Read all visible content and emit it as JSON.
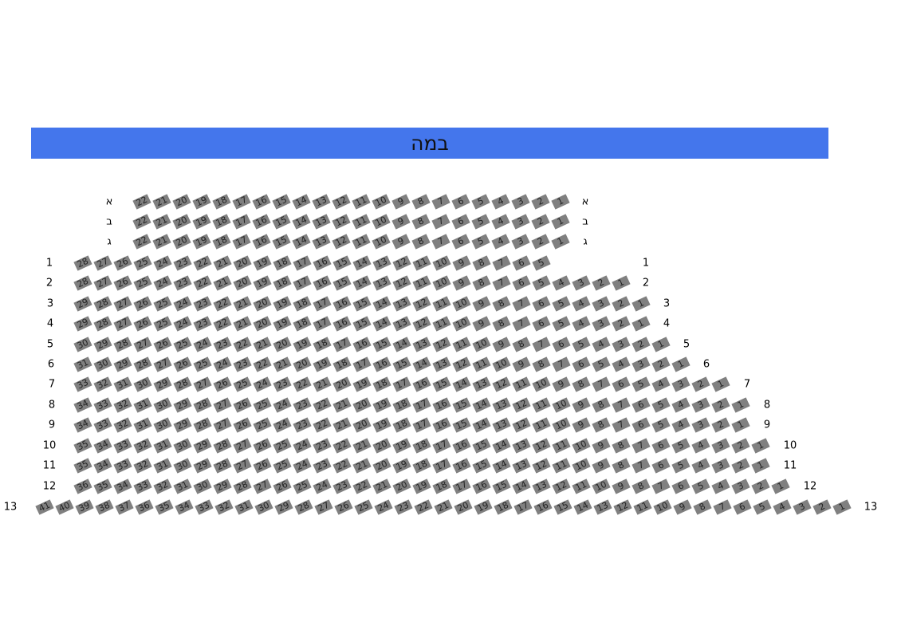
{
  "stage": {
    "label": "במה",
    "color": "#4476ec"
  },
  "seat_color": "#808080",
  "rows": [
    {
      "label": "א",
      "highest_seat": 22,
      "lowest_seat": 1
    },
    {
      "label": "ב",
      "highest_seat": 22,
      "lowest_seat": 1
    },
    {
      "label": "ג",
      "highest_seat": 22,
      "lowest_seat": 1
    },
    {
      "label": "1",
      "highest_seat": 28,
      "lowest_seat": 5
    },
    {
      "label": "2",
      "highest_seat": 28,
      "lowest_seat": 1
    },
    {
      "label": "3",
      "highest_seat": 29,
      "lowest_seat": 1
    },
    {
      "label": "4",
      "highest_seat": 29,
      "lowest_seat": 1
    },
    {
      "label": "5",
      "highest_seat": 30,
      "lowest_seat": 1
    },
    {
      "label": "6",
      "highest_seat": 31,
      "lowest_seat": 1
    },
    {
      "label": "7",
      "highest_seat": 33,
      "lowest_seat": 1
    },
    {
      "label": "8",
      "highest_seat": 34,
      "lowest_seat": 1
    },
    {
      "label": "9",
      "highest_seat": 34,
      "lowest_seat": 1
    },
    {
      "label": "10",
      "highest_seat": 35,
      "lowest_seat": 1
    },
    {
      "label": "11",
      "highest_seat": 35,
      "lowest_seat": 1
    },
    {
      "label": "12",
      "highest_seat": 36,
      "lowest_seat": 1
    },
    {
      "label": "13",
      "highest_seat": 41,
      "lowest_seat": 1
    }
  ]
}
